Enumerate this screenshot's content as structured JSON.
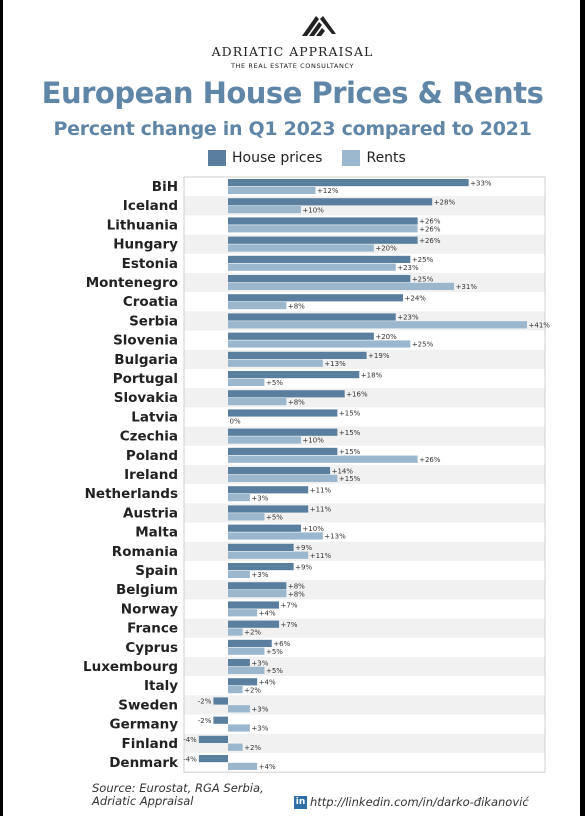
{
  "brand": {
    "name": "ADRIATIC APPRAISAL",
    "tagline": "THE REAL ESTATE CONSULTANCY",
    "logo_icon": "building-stripes-logo"
  },
  "footer": {
    "source_line1": "Source: Eurostat, RGA Serbia,",
    "source_line2": "Adriatic Appraisal",
    "link_icon": "linkedin-icon",
    "link_icon_text": "in",
    "link_text": "http://linkedin.com/in/darko-đikanović"
  },
  "colors": {
    "house": "#5a7f9e",
    "rent": "#9bb7cd",
    "title": "#5f86a7"
  },
  "chart_data": {
    "type": "bar",
    "orientation": "horizontal",
    "title": "European House Prices & Rents",
    "subtitle": "Percent change in Q1 2023 compared to 2021",
    "legend_placement": "top",
    "grid": true,
    "categories": [
      "BiH",
      "Iceland",
      "Lithuania",
      "Hungary",
      "Estonia",
      "Montenegro",
      "Croatia",
      "Serbia",
      "Slovenia",
      "Bulgaria",
      "Portugal",
      "Slovakia",
      "Latvia",
      "Czechia",
      "Poland",
      "Ireland",
      "Netherlands",
      "Austria",
      "Malta",
      "Romania",
      "Spain",
      "Belgium",
      "Norway",
      "France",
      "Cyprus",
      "Luxembourg",
      "Italy",
      "Sweden",
      "Germany",
      "Finland",
      "Denmark"
    ],
    "series": [
      {
        "name": "House prices",
        "values": [
          33,
          28,
          26,
          26,
          25,
          25,
          24,
          23,
          20,
          19,
          18,
          16,
          15,
          15,
          15,
          14,
          11,
          11,
          10,
          9,
          9,
          8,
          7,
          7,
          6,
          3,
          4,
          -2,
          -2,
          -4,
          -4
        ],
        "labels": [
          "+33%",
          "+28%",
          "+26%",
          "+26%",
          "+25%",
          "+25%",
          "+24%",
          "+23%",
          "+20%",
          "+19%",
          "+18%",
          "+16%",
          "+15%",
          "+15%",
          "+15%",
          "+14%",
          "+11%",
          "+11%",
          "+10%",
          "+9%",
          "+9%",
          "+8%",
          "+7%",
          "+7%",
          "+6%",
          "+3%",
          "+4%",
          "-2%",
          "-2%",
          "-4%",
          "-4%"
        ]
      },
      {
        "name": "Rents",
        "values": [
          12,
          10,
          26,
          20,
          23,
          31,
          8,
          41,
          25,
          13,
          5,
          8,
          0,
          10,
          26,
          15,
          3,
          5,
          13,
          11,
          3,
          8,
          4,
          2,
          5,
          5,
          2,
          3,
          3,
          2,
          4
        ],
        "labels": [
          "+12%",
          "+10%",
          "+26%",
          "+20%",
          "+23%",
          "+31%",
          "+8%",
          "+41%",
          "+25%",
          "+13%",
          "+5%",
          "+8%",
          "0%",
          "+10%",
          "+26%",
          "+15%",
          "+3%",
          "+5%",
          "+13%",
          "+11%",
          "+3%",
          "+8%",
          "+4%",
          "+2%",
          "+5%",
          "+5%",
          "+2%",
          "+3%",
          "+3%",
          "+2%",
          "+4%"
        ]
      }
    ],
    "xlim": [
      -4,
      41
    ]
  }
}
